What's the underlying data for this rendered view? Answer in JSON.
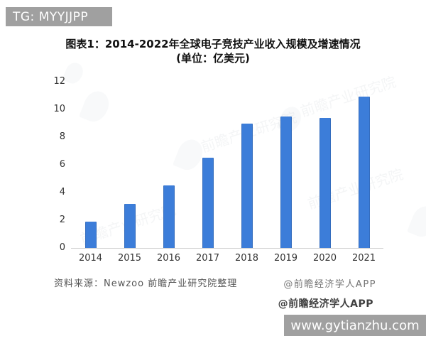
{
  "overlay": {
    "tg_label": "TG: MYYJJPP",
    "site_label": "www.gytianzhu.com"
  },
  "chart": {
    "title_line1": "图表1：2014-2022年全球电子竞技产业收入规模及增速情况",
    "title_line2": "(单位：亿美元)",
    "source": "资料来源：Newzoo 前瞻产业研究院整理",
    "credit_top": "@前瞻经济学人APP",
    "credit_bottom": "@前瞻经济学人APP",
    "watermark_text": "前瞻产业研究院"
  },
  "chart_data": {
    "type": "bar",
    "categories": [
      "2014",
      "2015",
      "2016",
      "2017",
      "2018",
      "2019",
      "2020",
      "2021"
    ],
    "values": [
      1.9,
      3.2,
      4.5,
      6.5,
      9.0,
      9.5,
      9.4,
      10.9
    ],
    "title": "图表1：2014-2022年全球电子竞技产业收入规模及增速情况 (单位：亿美元)",
    "xlabel": "",
    "ylabel": "",
    "ylim": [
      0,
      12
    ],
    "yticks": [
      0,
      2,
      4,
      6,
      8,
      10,
      12
    ],
    "grid": false,
    "legend": "none",
    "bar_color": "#3c7dd9"
  },
  "colors": {
    "badge_gray": "#a0a0a0",
    "bar_blue": "#3c7dd9",
    "axis_line": "#cfcfcf",
    "tick_text": "#333333"
  }
}
